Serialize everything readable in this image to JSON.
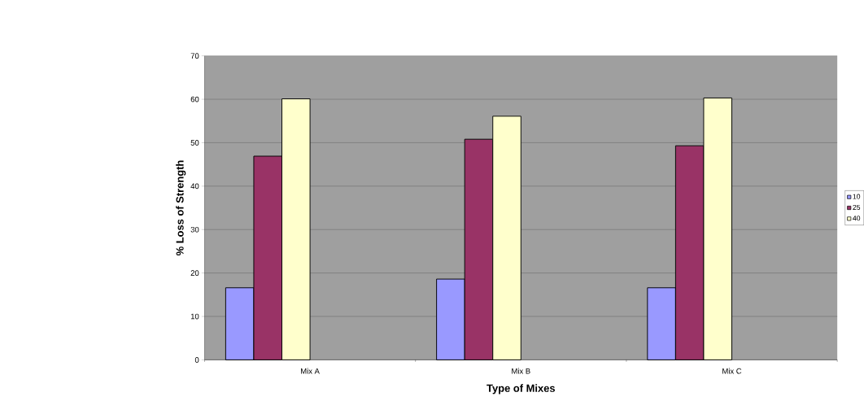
{
  "chart_data": {
    "type": "bar",
    "xlabel": "Type of Mixes",
    "ylabel": "% Loss of Strength",
    "categories": [
      "Mix A",
      "Mix B",
      "Mix C"
    ],
    "series": [
      {
        "name": "10",
        "color": "#9999ff",
        "values": [
          16.6,
          18.6,
          16.6
        ]
      },
      {
        "name": "25",
        "color": "#993366",
        "values": [
          46.9,
          50.8,
          49.3
        ]
      },
      {
        "name": "40",
        "color": "#ffffcc",
        "values": [
          60.1,
          56.1,
          60.3
        ]
      },
      {
        "color": "#ccffff",
        "values": [
          null,
          null,
          null
        ]
      },
      {
        "color": "#660066",
        "values": [
          null,
          null,
          null
        ]
      },
      {
        "color": "#ff8080",
        "values": [
          null,
          null,
          null
        ]
      }
    ],
    "ylim": [
      0,
      70
    ],
    "yticks": [
      0,
      10,
      20,
      30,
      40,
      50,
      60,
      70
    ],
    "grid": "y",
    "legend": "right"
  }
}
